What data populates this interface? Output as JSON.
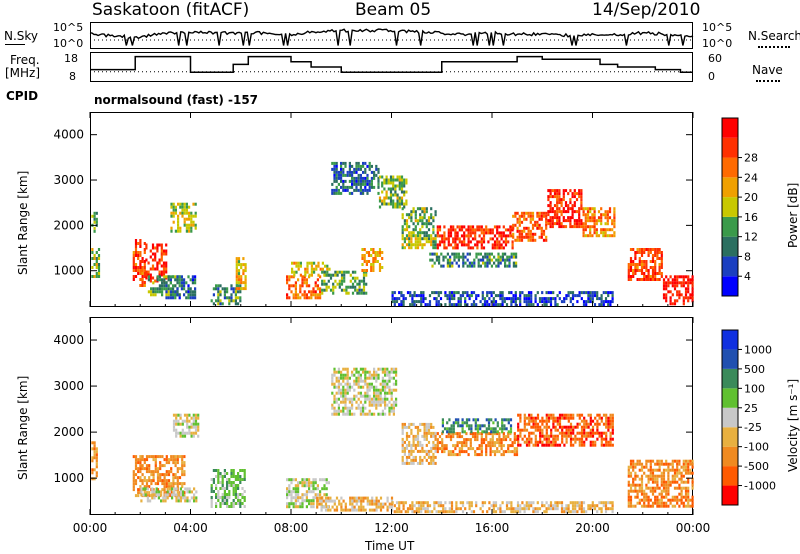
{
  "header": {
    "station": "Saskatoon (fitACF)",
    "beam": "Beam 05",
    "date": "14/Sep/2010",
    "mode": "normalsound (fast) -157"
  },
  "aux_labels": {
    "nsky": "N.Sky",
    "nsky_top": "10^5",
    "nsky_bot": "10^0",
    "nsearch": "N.Search",
    "nsearch_top": "10^5",
    "nsearch_bot": "10^0",
    "freq_line1": "Freq.",
    "freq_line2": "[MHz]",
    "freq_top": "18",
    "freq_bot": "8",
    "nave_top": "60",
    "nave_bot": "0",
    "nave": "Nave",
    "cpid": "CPID"
  },
  "colors": {
    "power": [
      "#0000ff",
      "#1b3fc0",
      "#2b6f60",
      "#3a9a4a",
      "#c8c800",
      "#f0a000",
      "#ff6a00",
      "#ff3000",
      "#ff0000"
    ],
    "velocity": [
      "#ff0000",
      "#ff5a00",
      "#f08a20",
      "#e8b040",
      "#c8c8c8",
      "#60c030",
      "#3a8a5a",
      "#2050b0",
      "#1030e0"
    ]
  },
  "chart_data": [
    {
      "type": "heatmap",
      "name": "power",
      "ylabel": "Slant Range [km]",
      "xlabel": "",
      "x_ticks": [
        "00:00",
        "04:00",
        "08:00",
        "12:00",
        "16:00",
        "20:00",
        "00:00"
      ],
      "y_ticks": [
        "1000",
        "2000",
        "3000",
        "4000"
      ],
      "ylim": [
        200,
        4500
      ],
      "xlim_hours": [
        0,
        24
      ],
      "colorbar_label": "Power [dB]",
      "colorbar_ticks": [
        "4",
        "8",
        "12",
        "16",
        "20",
        "24",
        "28"
      ],
      "clim": [
        0,
        32
      ],
      "regions": [
        {
          "t0": 0.05,
          "t1": 0.35,
          "r0": 900,
          "r1": 1500,
          "v": 14
        },
        {
          "t0": 0.05,
          "t1": 0.3,
          "r0": 1900,
          "r1": 2300,
          "v": 12
        },
        {
          "t0": 1.7,
          "t1": 2.2,
          "r0": 700,
          "r1": 1700,
          "v": 26
        },
        {
          "t0": 2.2,
          "t1": 3.0,
          "r0": 800,
          "r1": 1600,
          "v": 28
        },
        {
          "t0": 2.3,
          "t1": 3.6,
          "r0": 500,
          "r1": 900,
          "v": 12
        },
        {
          "t0": 3.0,
          "t1": 4.2,
          "r0": 400,
          "r1": 900,
          "v": 8
        },
        {
          "t0": 3.2,
          "t1": 4.2,
          "r0": 1900,
          "r1": 2500,
          "v": 16
        },
        {
          "t0": 4.8,
          "t1": 6.0,
          "r0": 300,
          "r1": 700,
          "v": 10
        },
        {
          "t0": 5.8,
          "t1": 6.2,
          "r0": 600,
          "r1": 1300,
          "v": 18
        },
        {
          "t0": 7.8,
          "t1": 9.2,
          "r0": 400,
          "r1": 900,
          "v": 24
        },
        {
          "t0": 8.0,
          "t1": 9.5,
          "r0": 900,
          "r1": 1200,
          "v": 18
        },
        {
          "t0": 9.2,
          "t1": 11.0,
          "r0": 500,
          "r1": 1000,
          "v": 12
        },
        {
          "t0": 10.8,
          "t1": 11.6,
          "r0": 1000,
          "r1": 1500,
          "v": 20
        },
        {
          "t0": 9.6,
          "t1": 11.5,
          "r0": 2700,
          "r1": 3400,
          "v": 8
        },
        {
          "t0": 11.5,
          "t1": 12.6,
          "r0": 2400,
          "r1": 3100,
          "v": 14
        },
        {
          "t0": 12.4,
          "t1": 13.8,
          "r0": 1500,
          "r1": 2400,
          "v": 14
        },
        {
          "t0": 13.8,
          "t1": 16.8,
          "r0": 1500,
          "r1": 2000,
          "v": 28
        },
        {
          "t0": 13.5,
          "t1": 17.0,
          "r0": 1100,
          "r1": 1400,
          "v": 10
        },
        {
          "t0": 16.8,
          "t1": 18.2,
          "r0": 1700,
          "r1": 2300,
          "v": 24
        },
        {
          "t0": 18.2,
          "t1": 19.6,
          "r0": 2000,
          "r1": 2800,
          "v": 28
        },
        {
          "t0": 19.6,
          "t1": 20.9,
          "r0": 1800,
          "r1": 2400,
          "v": 22
        },
        {
          "t0": 21.4,
          "t1": 22.8,
          "r0": 800,
          "r1": 1500,
          "v": 26
        },
        {
          "t0": 22.8,
          "t1": 24.0,
          "r0": 300,
          "r1": 900,
          "v": 30
        },
        {
          "t0": 12.0,
          "t1": 20.8,
          "r0": 250,
          "r1": 550,
          "v": 6
        }
      ]
    },
    {
      "type": "heatmap",
      "name": "velocity",
      "ylabel": "Slant Range [km]",
      "xlabel": "Time UT",
      "x_ticks": [
        "00:00",
        "04:00",
        "08:00",
        "12:00",
        "16:00",
        "20:00",
        "00:00"
      ],
      "y_ticks": [
        "1000",
        "2000",
        "3000",
        "4000"
      ],
      "ylim": [
        200,
        4500
      ],
      "xlim_hours": [
        0,
        24
      ],
      "colorbar_label": "Velocity [m s⁻¹]",
      "colorbar_ticks": [
        "1000",
        "500",
        "100",
        "25",
        "-25",
        "-100",
        "-500",
        "-1000"
      ],
      "regions": [
        {
          "t0": 0.05,
          "t1": 0.3,
          "r0": 1000,
          "r1": 1800,
          "v": 2
        },
        {
          "t0": 1.7,
          "t1": 3.8,
          "r0": 600,
          "r1": 1500,
          "v": 2
        },
        {
          "t0": 2.0,
          "t1": 4.2,
          "r0": 500,
          "r1": 800,
          "v": 4
        },
        {
          "t0": 3.3,
          "t1": 4.3,
          "r0": 1900,
          "r1": 2400,
          "v": 4
        },
        {
          "t0": 4.8,
          "t1": 6.2,
          "r0": 400,
          "r1": 1200,
          "v": 5
        },
        {
          "t0": 7.8,
          "t1": 9.5,
          "r0": 400,
          "r1": 1000,
          "v": 4
        },
        {
          "t0": 9.0,
          "t1": 12.0,
          "r0": 300,
          "r1": 600,
          "v": 3
        },
        {
          "t0": 9.6,
          "t1": 12.2,
          "r0": 2400,
          "r1": 3400,
          "v": 4
        },
        {
          "t0": 12.4,
          "t1": 13.8,
          "r0": 1300,
          "r1": 2200,
          "v": 3
        },
        {
          "t0": 13.8,
          "t1": 17.0,
          "r0": 1500,
          "r1": 2000,
          "v": 2
        },
        {
          "t0": 14.0,
          "t1": 16.8,
          "r0": 2000,
          "r1": 2300,
          "v": 6
        },
        {
          "t0": 17.0,
          "t1": 20.8,
          "r0": 1700,
          "r1": 2400,
          "v": 1
        },
        {
          "t0": 21.4,
          "t1": 24.0,
          "r0": 400,
          "r1": 1400,
          "v": 2
        },
        {
          "t0": 12.0,
          "t1": 20.8,
          "r0": 250,
          "r1": 500,
          "v": 3
        }
      ]
    }
  ],
  "aux_data": {
    "x_hours": [
      0,
      1.5,
      2,
      2.5,
      4,
      5,
      6,
      7,
      8,
      9,
      10,
      11,
      12,
      13,
      14,
      15,
      16,
      17,
      18,
      19,
      20,
      21,
      22,
      23,
      24
    ],
    "nsky": [
      0.55,
      0.45,
      0.4,
      0.55,
      0.65,
      0.6,
      0.6,
      0.6,
      0.55,
      0.65,
      0.7,
      0.7,
      0.7,
      0.65,
      0.6,
      0.55,
      0.6,
      0.55,
      0.55,
      0.5,
      0.55,
      0.55,
      0.6,
      0.55,
      0.45
    ],
    "freq_mhz": [
      [
        0,
        12
      ],
      [
        1.8,
        17
      ],
      [
        4,
        11
      ],
      [
        5.7,
        14
      ],
      [
        6.3,
        17
      ],
      [
        8,
        15
      ],
      [
        8.8,
        13
      ],
      [
        10,
        11
      ],
      [
        13.5,
        11
      ],
      [
        14,
        15
      ],
      [
        17,
        17
      ],
      [
        18,
        16
      ],
      [
        19,
        16
      ],
      [
        20.3,
        14
      ],
      [
        21,
        13
      ],
      [
        22.5,
        12
      ],
      [
        23.5,
        11
      ],
      [
        24,
        11
      ]
    ],
    "nave": 19
  }
}
